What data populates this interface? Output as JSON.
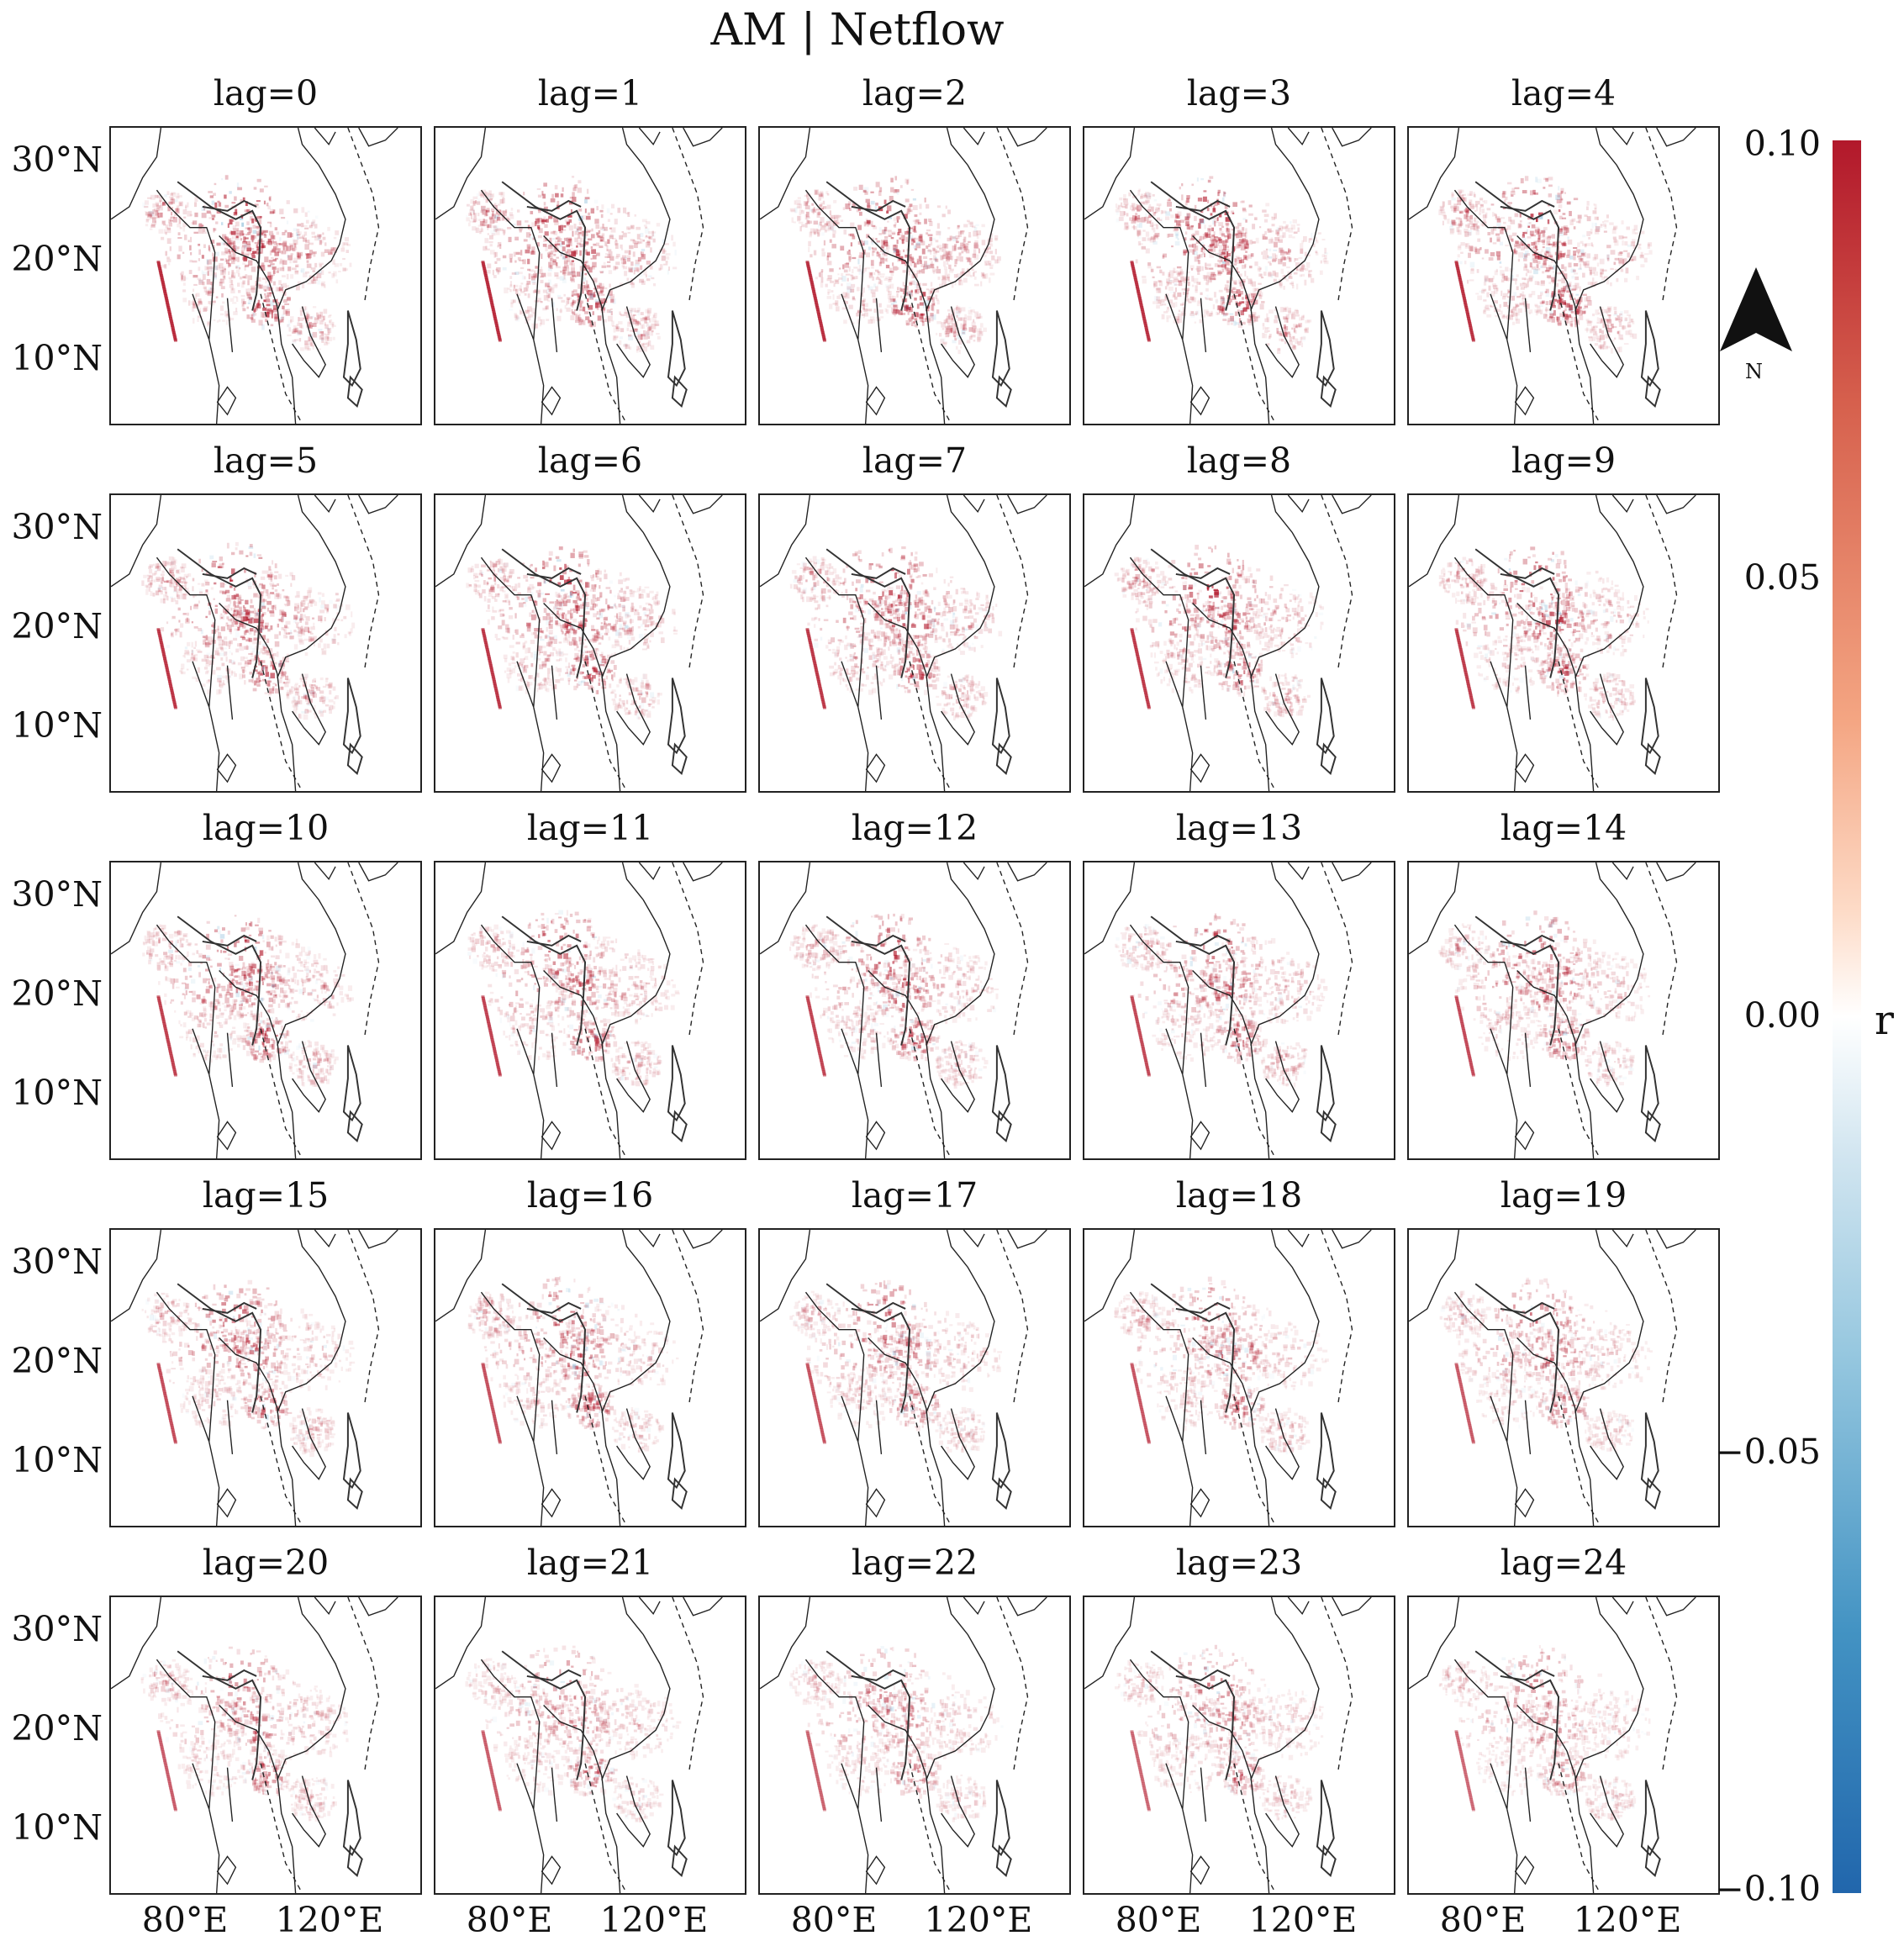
{
  "title": "AM | Netflow",
  "panels": [
    {
      "label": "lag=0"
    },
    {
      "label": "lag=1"
    },
    {
      "label": "lag=2"
    },
    {
      "label": "lag=3"
    },
    {
      "label": "lag=4"
    },
    {
      "label": "lag=5"
    },
    {
      "label": "lag=6"
    },
    {
      "label": "lag=7"
    },
    {
      "label": "lag=8"
    },
    {
      "label": "lag=9"
    },
    {
      "label": "lag=10"
    },
    {
      "label": "lag=11"
    },
    {
      "label": "lag=12"
    },
    {
      "label": "lag=13"
    },
    {
      "label": "lag=14"
    },
    {
      "label": "lag=15"
    },
    {
      "label": "lag=16"
    },
    {
      "label": "lag=17"
    },
    {
      "label": "lag=18"
    },
    {
      "label": "lag=19"
    },
    {
      "label": "lag=20"
    },
    {
      "label": "lag=21"
    },
    {
      "label": "lag=22"
    },
    {
      "label": "lag=23"
    },
    {
      "label": "lag=24"
    }
  ],
  "y_ticks": [
    "30°N",
    "20°N",
    "10°N"
  ],
  "x_ticks": [
    "80°E",
    "120°E"
  ],
  "colorbar": {
    "label": "r",
    "ticks": [
      "0.10",
      "0.05",
      "0.00",
      "−0.05",
      "−0.10"
    ],
    "min": -0.1,
    "max": 0.1,
    "colors": {
      "high": "#b2182b",
      "mid": "#ffffff",
      "low": "#2166ac"
    }
  },
  "north_arrow": {
    "label": "N",
    "icon": "north-arrow-icon"
  }
}
